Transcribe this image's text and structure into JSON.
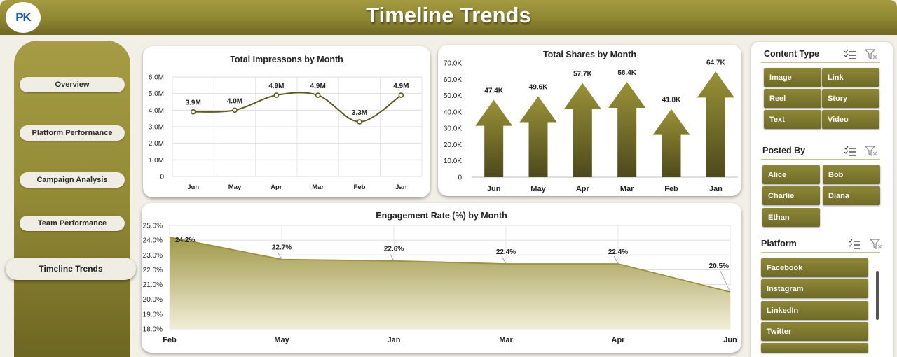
{
  "header": {
    "title": "Timeline Trends",
    "logo_text": "PK"
  },
  "nav": {
    "items": [
      {
        "label": "Overview"
      },
      {
        "label": "Platform Performance"
      },
      {
        "label": "Campaign Analysis"
      },
      {
        "label": "Team Performance"
      },
      {
        "label": "Timeline Trends",
        "active": true
      }
    ]
  },
  "chart_data": [
    {
      "type": "line",
      "title": "Total Impressons by Month",
      "categories": [
        "Jun",
        "May",
        "Apr",
        "Mar",
        "Feb",
        "Jan"
      ],
      "values": [
        3.9,
        4.0,
        4.9,
        4.9,
        3.3,
        4.9
      ],
      "data_labels": [
        "3.9M",
        "4.0M",
        "4.9M",
        "4.9M",
        "3.3M",
        "4.9M"
      ],
      "y_ticks": [
        "0",
        "1.0M",
        "2.0M",
        "3.0M",
        "4.0M",
        "5.0M",
        "6.0M"
      ],
      "ylim": [
        0,
        6
      ],
      "grid": true,
      "color": "#5f5a24"
    },
    {
      "type": "bar",
      "title": "Total Shares by Month",
      "categories": [
        "Jun",
        "May",
        "Apr",
        "Mar",
        "Feb",
        "Jan"
      ],
      "values": [
        47.4,
        49.6,
        57.7,
        58.4,
        41.8,
        64.7
      ],
      "data_labels": [
        "47.4K",
        "49.6K",
        "57.7K",
        "58.4K",
        "41.8K",
        "64.7K"
      ],
      "y_ticks": [
        "0",
        "10.0K",
        "20.0K",
        "30.0K",
        "40.0K",
        "50.0K",
        "60.0K",
        "70.0K"
      ],
      "ylim": [
        0,
        70
      ],
      "grid": false,
      "color": "#8c8530"
    },
    {
      "type": "area",
      "title": "Engagement Rate (%) by Month",
      "categories": [
        "Feb",
        "May",
        "Jan",
        "Mar",
        "Apr",
        "Jun"
      ],
      "values": [
        24.2,
        22.7,
        22.6,
        22.4,
        22.4,
        20.5
      ],
      "data_labels": [
        "24.2%",
        "22.7%",
        "22.6%",
        "22.4%",
        "22.4%",
        "20.5%"
      ],
      "y_ticks": [
        "18.0%",
        "19.0%",
        "20.0%",
        "21.0%",
        "22.0%",
        "23.0%",
        "24.0%",
        "25.0%"
      ],
      "ylim": [
        18,
        25
      ],
      "grid": true,
      "color": "#9a9040"
    }
  ],
  "slicers": {
    "content_type": {
      "title": "Content Type",
      "items": [
        "Image",
        "Link",
        "Reel",
        "Story",
        "Text",
        "Video"
      ]
    },
    "posted_by": {
      "title": "Posted By",
      "items": [
        "Alice",
        "Bob",
        "Charlie",
        "Diana",
        "Ethan"
      ]
    },
    "platform": {
      "title": "Platform",
      "items": [
        "Facebook",
        "Instagram",
        "LinkedIn",
        "Twitter"
      ]
    }
  }
}
